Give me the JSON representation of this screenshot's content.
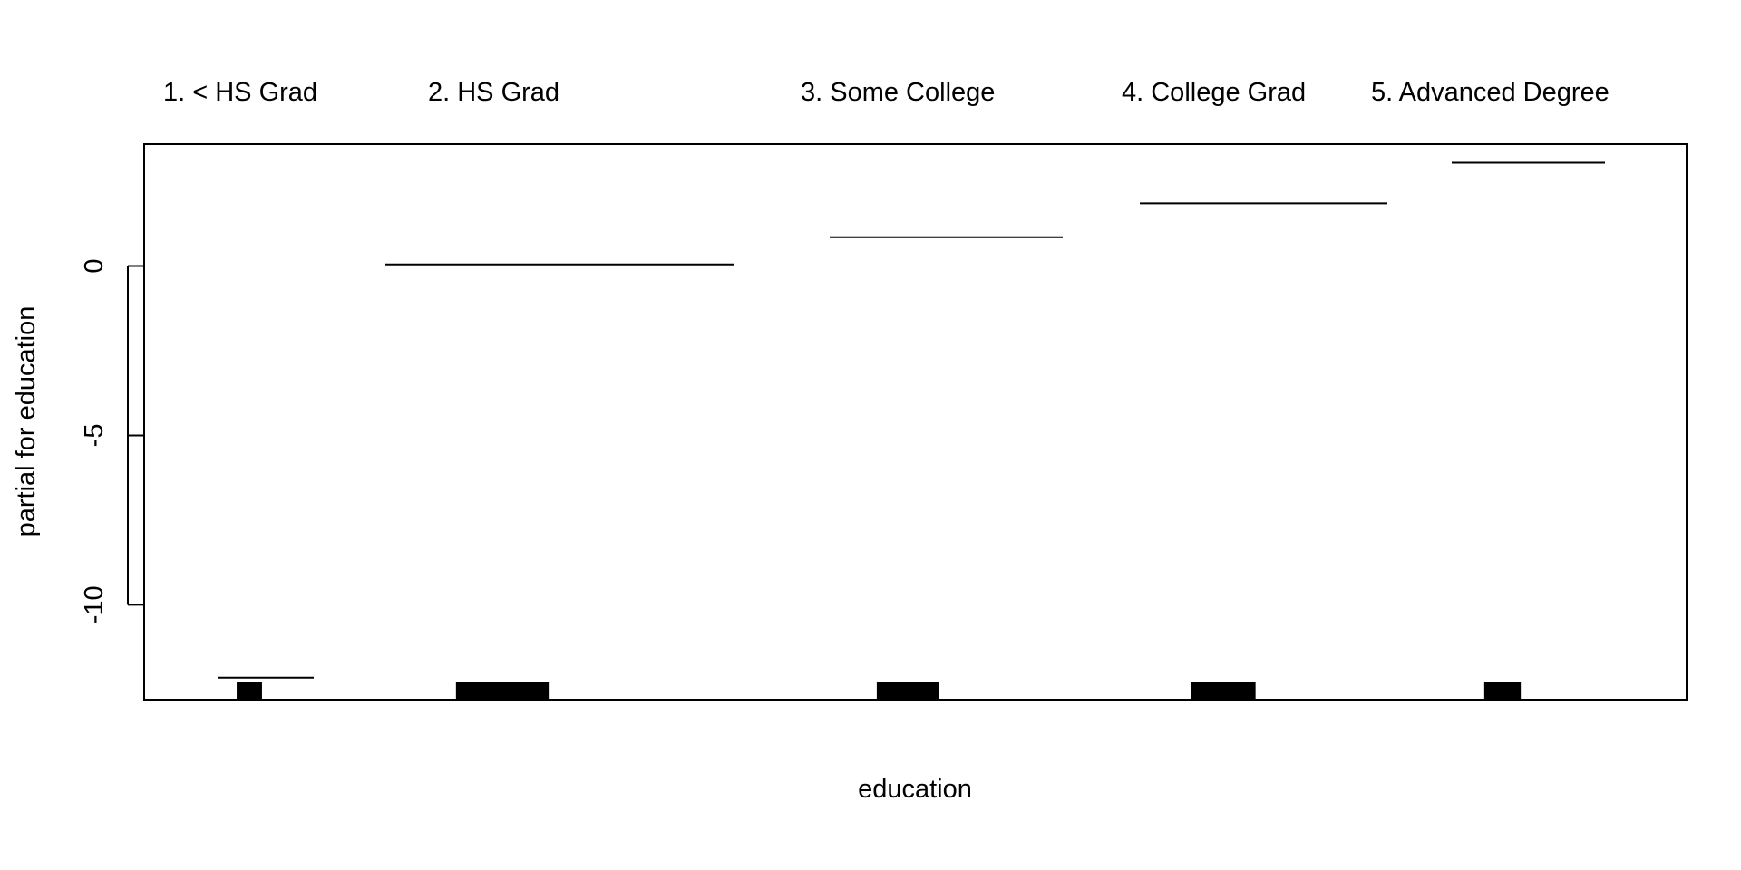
{
  "chart_data": {
    "type": "step",
    "title": "",
    "xlabel": "education",
    "ylabel": "partial for education",
    "ylim": [
      -12.8,
      3.6
    ],
    "yticks": [
      -10,
      -5,
      0
    ],
    "ytick_labels": [
      "-10",
      "-5",
      "0"
    ],
    "grid": false,
    "categories": [
      {
        "label": "1. < HS Grad",
        "partial_effect": -12.15,
        "rug_share": 0.09
      },
      {
        "label": "2. HS Grad",
        "partial_effect": 0.05,
        "rug_share": 0.33
      },
      {
        "label": "3. Some College",
        "partial_effect": 0.85,
        "rug_share": 0.22
      },
      {
        "label": "4. College Grad",
        "partial_effect": 1.85,
        "rug_share": 0.23
      },
      {
        "label": "5. Advanced Degree",
        "partial_effect": 3.05,
        "rug_share": 0.13
      }
    ],
    "line_color": "#000000",
    "rug_color": "#000000"
  }
}
